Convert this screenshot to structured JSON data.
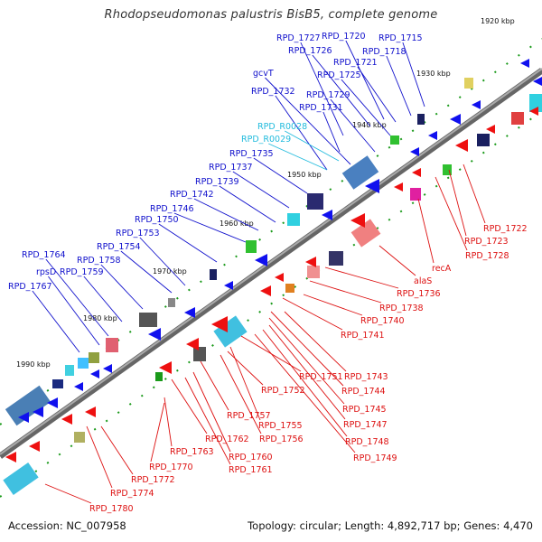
{
  "title": "Rhodopseudomonas palustris BisB5, complete genome",
  "footer": {
    "accession": "Accession: NC_007958",
    "topology": "Topology: circular; Length: 4,892,717 bp; Genes: 4,470"
  },
  "colors": {
    "forward_label": "#1010cc",
    "reverse_label": "#dd1010",
    "rna_label": "#22bbdd",
    "backbone": "#888888"
  },
  "kbp_ticks": [
    "1920 kbp",
    "1930 kbp",
    "1940 kbp",
    "1950 kbp",
    "1960 kbp",
    "1970 kbp",
    "1980 kbp",
    "1990 kbp"
  ],
  "forward_labels": [
    "RPD_1727",
    "RPD_1720",
    "RPD_1715",
    "RPD_1726",
    "RPD_1718",
    "RPD_1721",
    "RPD_1725",
    "gcvT",
    "RPD_1732",
    "RPD_1729",
    "RPD_1731",
    "RPD_1735",
    "RPD_1737",
    "RPD_1739",
    "RPD_1742",
    "RPD_1746",
    "RPD_1750",
    "RPD_1753",
    "RPD_1754",
    "RPD_1764",
    "RPD_1758",
    "rpsD",
    "RPD_1759",
    "RPD_1767"
  ],
  "rna_labels": [
    "RPD_R0028",
    "RPD_R0029"
  ],
  "reverse_labels": [
    "RPD_1722",
    "RPD_1723",
    "RPD_1728",
    "recA",
    "alaS",
    "RPD_1736",
    "RPD_1738",
    "RPD_1740",
    "RPD_1741",
    "RPD_1743",
    "RPD_1744",
    "RPD_1745",
    "RPD_1747",
    "RPD_1748",
    "RPD_1749",
    "RPD_1751",
    "RPD_1752",
    "RPD_1755",
    "RPD_1756",
    "RPD_1757",
    "RPD_1760",
    "RPD_1761",
    "RPD_1762",
    "RPD_1763",
    "RPD_1770",
    "RPD_1772",
    "RPD_1774",
    "RPD_1780"
  ]
}
